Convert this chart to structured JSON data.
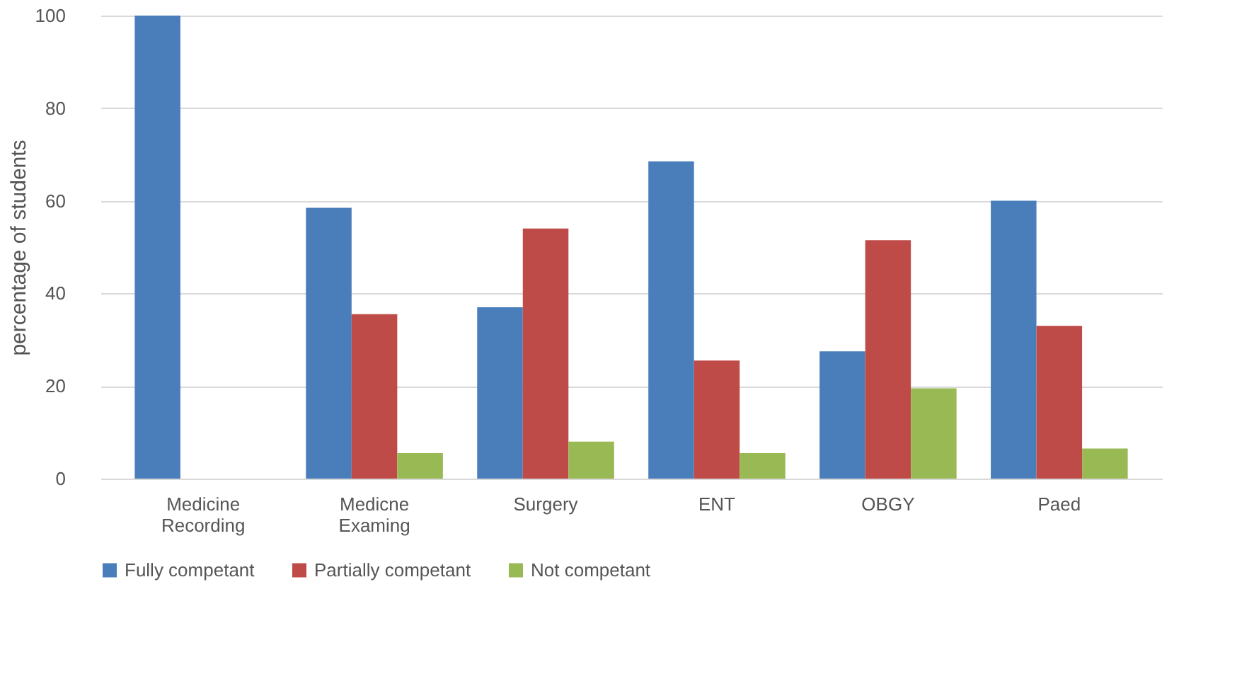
{
  "chart_data": {
    "type": "bar",
    "ylabel": "percentage of students",
    "categories": [
      "Medicine Recording",
      "Medicne Examing",
      "Surgery",
      "ENT",
      "OBGY",
      "Paed"
    ],
    "series": [
      {
        "name": "Fully competant",
        "color": "#4a7ebb",
        "values": [
          100,
          58.5,
          37,
          68.5,
          27.5,
          60
        ]
      },
      {
        "name": "Partially competant",
        "color": "#be4b48",
        "values": [
          0,
          35.5,
          54,
          25.5,
          51.5,
          33
        ]
      },
      {
        "name": "Not competant",
        "color": "#98b954",
        "values": [
          0,
          5.5,
          8,
          5.5,
          19.5,
          6.5
        ]
      }
    ],
    "ylim": [
      0,
      100
    ],
    "yticks": [
      0,
      20,
      40,
      60,
      80,
      100
    ],
    "grid": "y",
    "legend": "bottom"
  }
}
